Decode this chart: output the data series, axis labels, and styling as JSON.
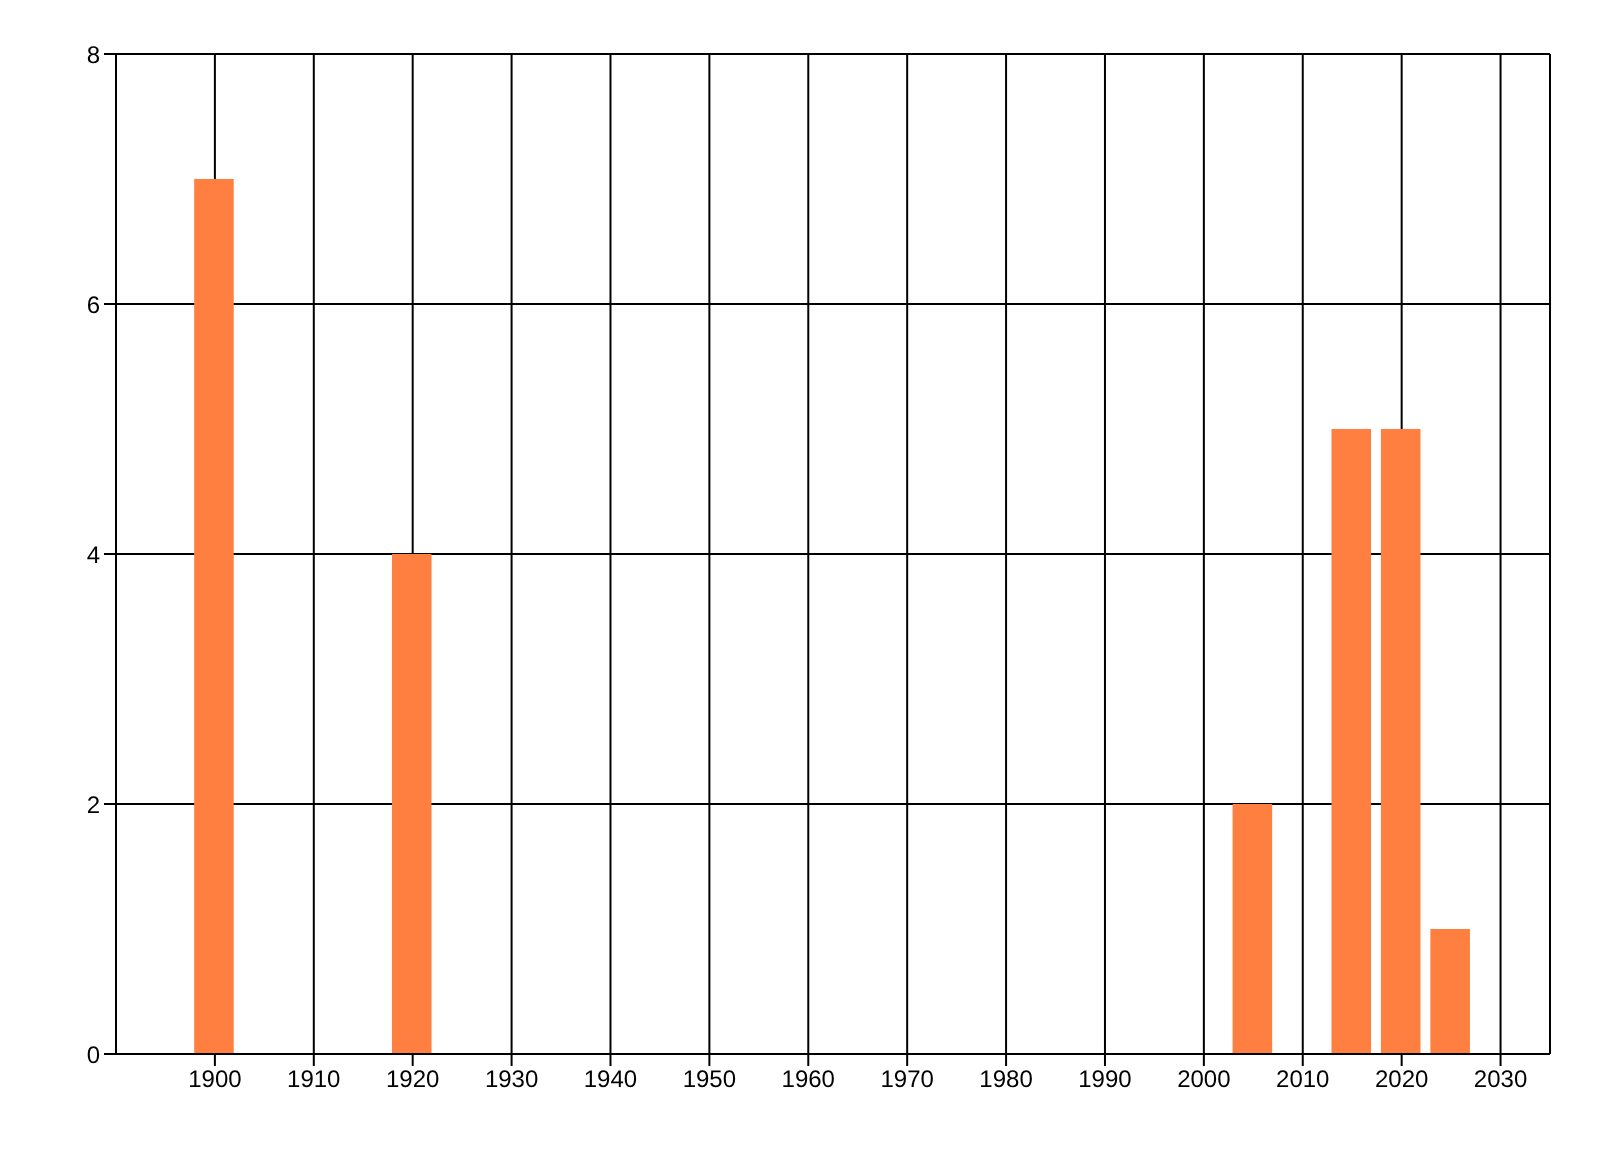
{
  "chart_data": {
    "type": "bar",
    "x": [
      1900,
      1920,
      2005,
      2015,
      2020,
      2025
    ],
    "values": [
      7,
      4,
      2,
      5,
      5,
      1
    ],
    "color": "#ff7f40",
    "xlim": [
      1890,
      2035
    ],
    "xticks": [
      1900,
      1910,
      1920,
      1930,
      1940,
      1950,
      1960,
      1970,
      1980,
      1990,
      2000,
      2010,
      2020,
      2030
    ],
    "ylim": [
      0,
      8
    ],
    "yticks": [
      0,
      2,
      4,
      6,
      8
    ],
    "grid": true
  }
}
